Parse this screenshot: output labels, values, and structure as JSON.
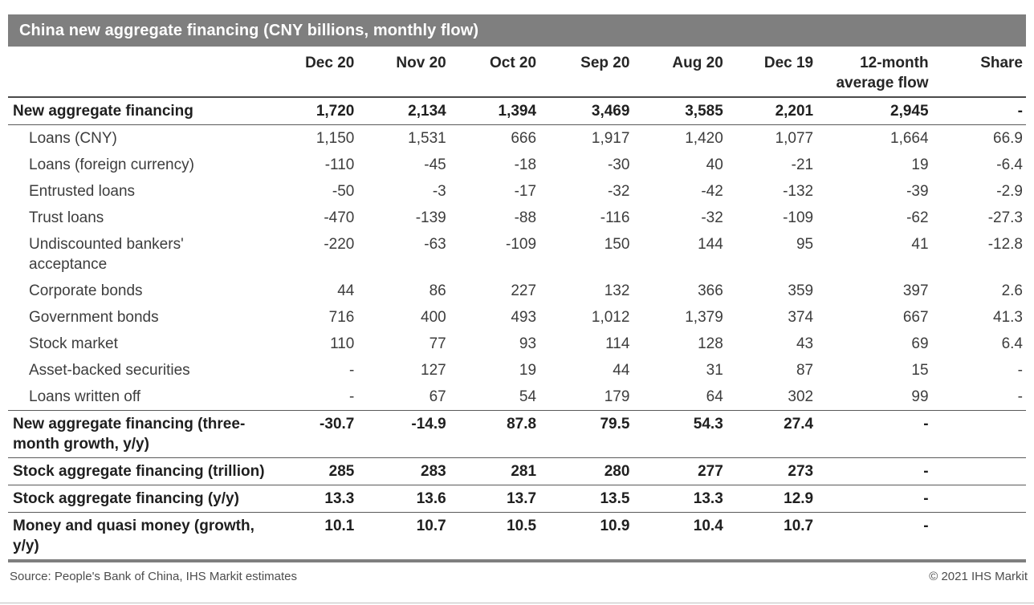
{
  "title_bar": {
    "title": "China new aggregate financing (CNY billions, monthly flow)"
  },
  "chart_data": {
    "type": "table",
    "title": "China new aggregate financing (CNY billions, monthly flow)",
    "columns": [
      "Dec 20",
      "Nov 20",
      "Oct 20",
      "Sep 20",
      "Aug 20",
      "Dec 19",
      "12-month average flow",
      "Share"
    ],
    "rows": [
      {
        "label": "New aggregate financing",
        "style": "total-row",
        "values": [
          "1,720",
          "2,134",
          "1,394",
          "3,469",
          "3,585",
          "2,201",
          "2,945",
          "-"
        ]
      },
      {
        "label": "Loans (CNY)",
        "style": "item-row",
        "values": [
          "1,150",
          "1,531",
          "666",
          "1,917",
          "1,420",
          "1,077",
          "1,664",
          "66.9"
        ]
      },
      {
        "label": "Loans (foreign currency)",
        "style": "item-row",
        "values": [
          "-110",
          "-45",
          "-18",
          "-30",
          "40",
          "-21",
          "19",
          "-6.4"
        ]
      },
      {
        "label": "Entrusted loans",
        "style": "item-row",
        "values": [
          "-50",
          "-3",
          "-17",
          "-32",
          "-42",
          "-132",
          "-39",
          "-2.9"
        ]
      },
      {
        "label": "Trust loans",
        "style": "item-row",
        "values": [
          "-470",
          "-139",
          "-88",
          "-116",
          "-32",
          "-109",
          "-62",
          "-27.3"
        ]
      },
      {
        "label": "Undiscounted bankers' acceptance",
        "style": "item-row",
        "values": [
          "-220",
          "-63",
          "-109",
          "150",
          "144",
          "95",
          "41",
          "-12.8"
        ]
      },
      {
        "label": "Corporate bonds",
        "style": "item-row",
        "values": [
          "44",
          "86",
          "227",
          "132",
          "366",
          "359",
          "397",
          "2.6"
        ]
      },
      {
        "label": "Government bonds",
        "style": "item-row",
        "values": [
          "716",
          "400",
          "493",
          "1,012",
          "1,379",
          "374",
          "667",
          "41.3"
        ]
      },
      {
        "label": "Stock market",
        "style": "item-row",
        "values": [
          "110",
          "77",
          "93",
          "114",
          "128",
          "43",
          "69",
          "6.4"
        ]
      },
      {
        "label": "Asset-backed securities",
        "style": "item-row",
        "values": [
          "-",
          "127",
          "19",
          "44",
          "31",
          "87",
          "15",
          "-"
        ]
      },
      {
        "label": "Loans written off",
        "style": "item-row",
        "values": [
          "-",
          "67",
          "54",
          "179",
          "64",
          "302",
          "99",
          "-"
        ]
      },
      {
        "label": "New aggregate financing (three-month growth, y/y)",
        "style": "summary-row",
        "values": [
          "-30.7",
          "-14.9",
          "87.8",
          "79.5",
          "54.3",
          "27.4",
          "-",
          ""
        ]
      },
      {
        "label": "Stock aggregate financing (trillion)",
        "style": "summary-row",
        "values": [
          "285",
          "283",
          "281",
          "280",
          "277",
          "273",
          "-",
          ""
        ]
      },
      {
        "label": "Stock aggregate financing (y/y)",
        "style": "summary-row",
        "values": [
          "13.3",
          "13.6",
          "13.7",
          "13.5",
          "13.3",
          "12.9",
          "-",
          ""
        ]
      },
      {
        "label": "Money and quasi money (growth, y/y)",
        "style": "summary-row",
        "values": [
          "10.1",
          "10.7",
          "10.5",
          "10.9",
          "10.4",
          "10.7",
          "-",
          ""
        ]
      }
    ]
  },
  "footer": {
    "source": "Source: People's Bank of China, IHS Markit estimates",
    "copyright": "© 2021 IHS Markit"
  },
  "colors": {
    "title_bar_bg": "#7f7f7f",
    "title_text": "#ffffff",
    "header_rule": "#4a4a4a",
    "row_rule": "#595959",
    "table_bottom_rule": "#7f7f7f",
    "footer_rule": "#c0c0c0"
  }
}
